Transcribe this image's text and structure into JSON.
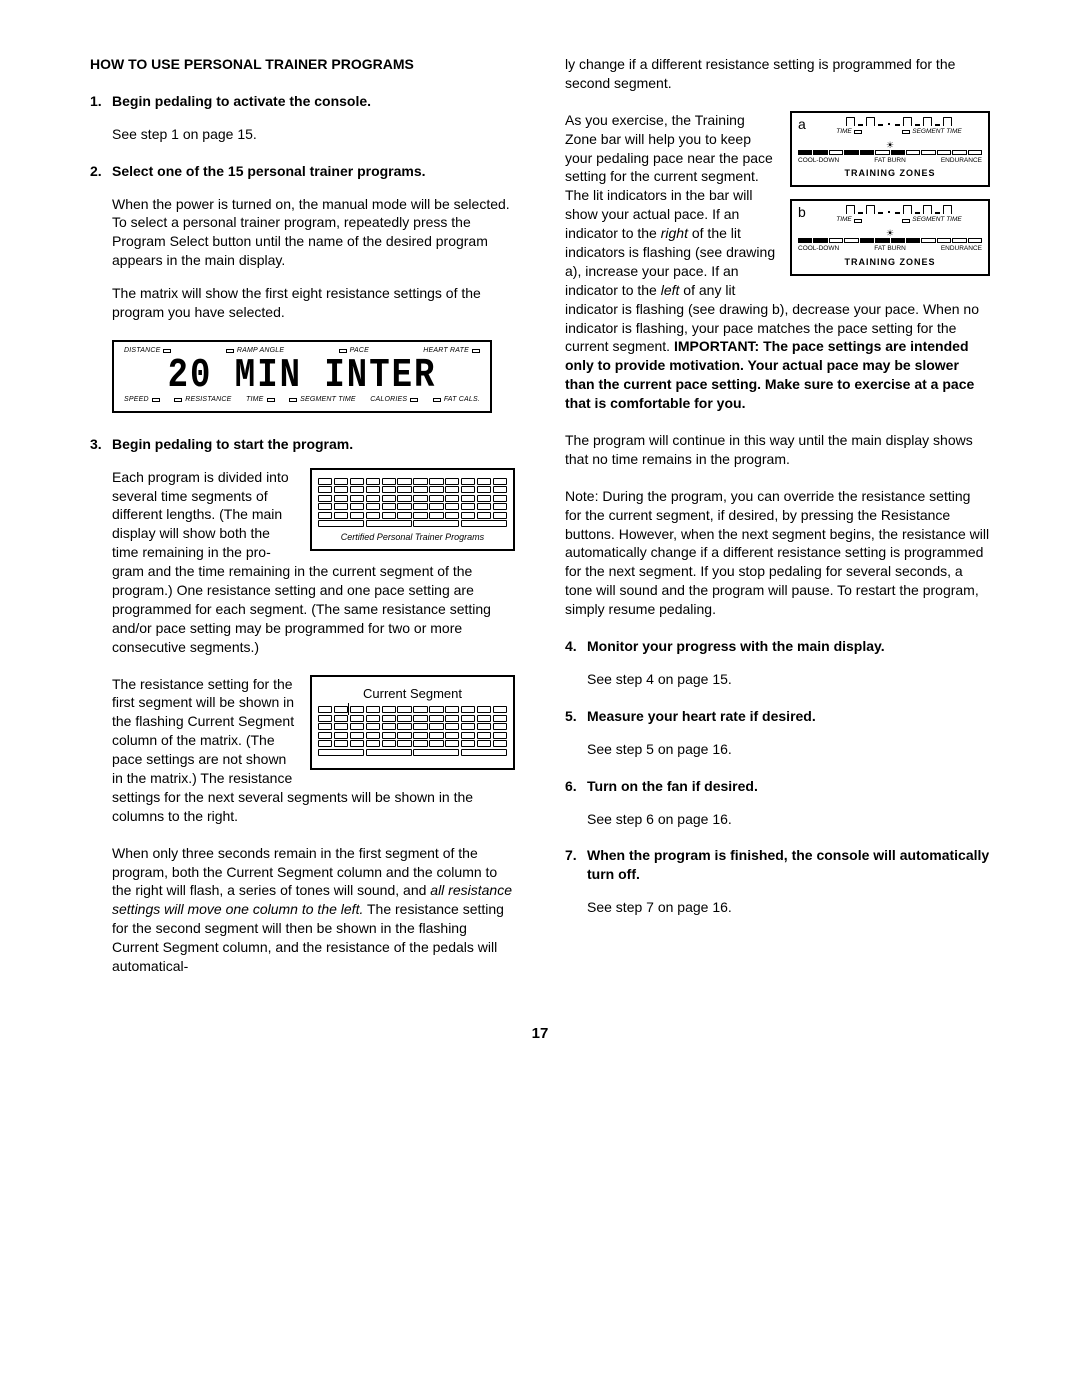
{
  "heading": "HOW TO USE PERSONAL TRAINER PROGRAMS",
  "page_number": "17",
  "steps": {
    "s1": {
      "num": "1.",
      "title": "Begin pedaling to activate the console.",
      "p1": "See step 1 on page 15."
    },
    "s2": {
      "num": "2.",
      "title": "Select one of the 15 personal trainer programs.",
      "p1": "When the power is turned on, the manual mode will be selected. To select a personal trainer program, repeatedly press the Program Select button until the name of the desired program appears in the main display.",
      "p2": "The matrix will show the first eight resistance settings of the program you have selected."
    },
    "s3": {
      "num": "3.",
      "title": "Begin pedaling to start the program.",
      "p1a": "Each program is divided into several time segments of different lengths. (The main display will show both the time remaining in the pro-",
      "p1b": "gram and the time remaining in the current segment of the program.) One resistance setting and one pace setting are programmed for each segment. (The same resistance setting and/or pace setting may be programmed for two or more consecutive segments.)",
      "p2a": "The resistance setting for the first segment will be shown in the flashing Current Segment column of the matrix. (The pace settings are not",
      "p2b": "shown in the matrix.) The resistance settings for the next several segments will be shown in the columns to the right.",
      "p3": "When only three seconds remain in the first segment of the program, both the Current Segment column and the column to the right will flash, a series of tones will sound, and ",
      "p3i": "all resistance settings will move one column to the left.",
      "p3c": " The resistance setting for the second segment will then be shown in the flashing Current Segment column, and the resistance of the pedals will automatical-"
    },
    "right": {
      "p0": "ly change if a different resistance setting is programmed for the second segment.",
      "p1a": "As you exercise, the Training Zone bar will help you to keep your pedaling pace near the pace setting for the current segment. The lit indicators in the bar will show your actual pace. If an indicator to the ",
      "p1r": "right",
      "p1b": " of the lit indicators is flashing (see drawing a), increase your",
      "p1c": "pace. If an indicator to the ",
      "p1l": "left",
      "p1d": " of any lit indicator is flashing (see drawing b), decrease your pace. When no indicator is flashing, your pace matches the pace setting for the current segment. ",
      "p1e": "IMPORTANT: The pace settings are intended only to provide motivation. Your actual pace may be slower than the current pace setting. Make sure to exercise at a pace that is comfortable for you.",
      "p2": "The program will continue in this way until the main display shows that no time remains in the program.",
      "p3": "Note: During the program, you can override the resistance setting for the current segment, if desired, by pressing the Resistance buttons. However, when the next segment begins, the resistance will automatically change if a different resistance setting is programmed for the next segment. If you stop pedaling for several seconds, a tone will sound and the program will pause. To restart the program, simply resume pedaling."
    },
    "s4": {
      "num": "4.",
      "title": "Monitor your progress with the main display.",
      "p1": "See step 4 on page 15."
    },
    "s5": {
      "num": "5.",
      "title": "Measure your heart rate if desired.",
      "p1": "See step 5 on page 16."
    },
    "s6": {
      "num": "6.",
      "title": "Turn on the fan if desired.",
      "p1": "See step 6 on page 16."
    },
    "s7": {
      "num": "7.",
      "title": "When the program is finished, the console will automatically turn off.",
      "p1": "See step 7 on page 16."
    }
  },
  "console": {
    "top_labels": [
      "DISTANCE",
      "RAMP ANGLE",
      "PACE",
      "HEART RATE"
    ],
    "segment_text": "20 MIN  INTER",
    "bot_labels": [
      "SPEED",
      "RESISTANCE",
      "TIME",
      "SEGMENT TIME",
      "CALORIES",
      "FAT CALS."
    ]
  },
  "matrix1": {
    "caption": "Certified Personal Trainer Programs"
  },
  "matrix2": {
    "title": "Current Segment"
  },
  "tz": {
    "tag_a": "a",
    "tag_b": "b",
    "time": "TIME",
    "segment_time": "SEGMENT TIME",
    "cooldown": "COOL-DOWN",
    "fatburn": "FAT BURN",
    "endurance": "ENDURANCE",
    "title": "TRAINING ZONES"
  }
}
